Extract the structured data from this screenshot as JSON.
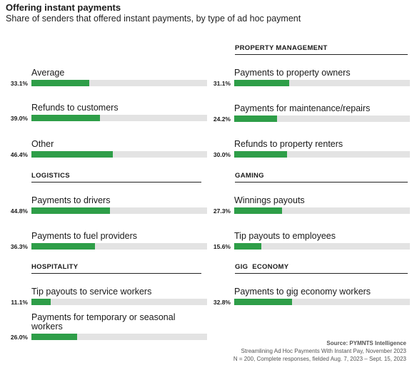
{
  "header": {
    "title": "Offering instant payments",
    "subtitle": "Share of senders that offered instant payments, by type of ad hoc payment"
  },
  "sections": {
    "property_management": "PROPERTY MANAGEMENT",
    "logistics": "LOGISTICS",
    "gaming": "GAMING",
    "hospitality": "HOSPITALITY",
    "gig_economy": "GIG  ECONOMY"
  },
  "chart_data": {
    "type": "bar",
    "title": "Offering instant payments",
    "subtitle": "Share of senders that offered instant payments, by type of ad hoc payment",
    "unit": "%",
    "xlim": [
      0,
      100
    ],
    "items": [
      {
        "group": "",
        "label": "Average",
        "value": 33.1,
        "display": "33.1%"
      },
      {
        "group": "",
        "label": "Refunds to customers",
        "value": 39.0,
        "display": "39.0%"
      },
      {
        "group": "",
        "label": "Other",
        "value": 46.4,
        "display": "46.4%"
      },
      {
        "group": "LOGISTICS",
        "label": "Payments to drivers",
        "value": 44.8,
        "display": "44.8%"
      },
      {
        "group": "LOGISTICS",
        "label": "Payments to fuel providers",
        "value": 36.3,
        "display": "36.3%"
      },
      {
        "group": "HOSPITALITY",
        "label": "Tip payouts to service workers",
        "value": 11.1,
        "display": "11.1%"
      },
      {
        "group": "HOSPITALITY",
        "label": "Payments for temporary or seasonal workers",
        "value": 26.0,
        "display": "26.0%"
      },
      {
        "group": "PROPERTY MANAGEMENT",
        "label": "Payments to property owners",
        "value": 31.1,
        "display": "31.1%"
      },
      {
        "group": "PROPERTY MANAGEMENT",
        "label": "Payments for maintenance/repairs",
        "value": 24.2,
        "display": "24.2%"
      },
      {
        "group": "PROPERTY MANAGEMENT",
        "label": "Refunds to property renters",
        "value": 30.0,
        "display": "30.0%"
      },
      {
        "group": "GAMING",
        "label": "Winnings payouts",
        "value": 27.3,
        "display": "27.3%"
      },
      {
        "group": "GAMING",
        "label": "Tip payouts to employees",
        "value": 15.6,
        "display": "15.6%"
      },
      {
        "group": "GIG ECONOMY",
        "label": "Payments to gig economy workers",
        "value": 32.8,
        "display": "32.8%"
      }
    ],
    "colors": {
      "bar": "#2e9e48",
      "track": "#e3e3e3"
    }
  },
  "footer": {
    "source": "Source: PYMNTS Intelligence",
    "report": "Streamlining Ad Hoc Payments With Instant Pay, November 2023",
    "note": "N = 200, Complete responses, fielded Aug. 7, 2023 – Sept. 15, 2023"
  }
}
